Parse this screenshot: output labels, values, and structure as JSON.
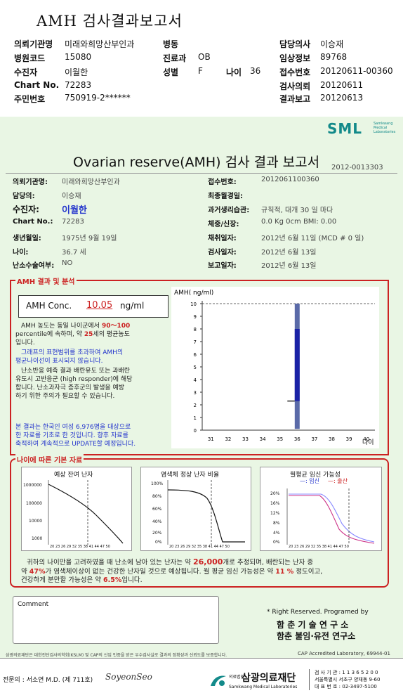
{
  "header": {
    "title": "AMH 검사결과보고서",
    "rows": [
      [
        {
          "k": "의뢰기관명",
          "v": "미래와희망산부인과"
        },
        {
          "k": "병동",
          "v": ""
        },
        {
          "k": "담당의사",
          "v": "이승재"
        }
      ],
      [
        {
          "k": "병원코드",
          "v": "15080"
        },
        {
          "k": "진료과",
          "v": "OB"
        },
        {
          "k": "임상정보",
          "v": "89768"
        }
      ],
      [
        {
          "k": "수진자",
          "v": "이월한"
        },
        {
          "k": "성별",
          "v": "F"
        },
        {
          "k": "접수번호",
          "v": "20120611-00360"
        }
      ],
      [
        {
          "k": "Chart No.",
          "v": "72283"
        },
        {
          "k": "",
          "v": ""
        },
        {
          "k": "검사의뢰",
          "v": "20120611"
        }
      ],
      [
        {
          "k": "주민번호",
          "v": "750919-2******"
        },
        {
          "k": "",
          "v": ""
        },
        {
          "k": "결과보고",
          "v": "20120613"
        }
      ]
    ],
    "age_label": "나이",
    "age_value": "36"
  },
  "report": {
    "logo": "SML",
    "logo_sub": "Samkwang Medical Laboratories",
    "title": "Ovarian reserve(AMH) 검사 결과 보고서",
    "doc_no": "2012-0013303",
    "left": [
      {
        "k": "의뢰기관명:",
        "v": "미래와희망산부인과"
      },
      {
        "k": "담당의:",
        "v": "이승재"
      },
      {
        "k": "수진자:",
        "v": "이월한"
      },
      {
        "k": "Chart No.:",
        "v": "72283"
      },
      {
        "k": "생년월일:",
        "v": "1975년 9월 19일"
      },
      {
        "k": "나이:",
        "v": "36.7 세"
      },
      {
        "k": "난소수술여부:",
        "v": "NO"
      }
    ],
    "right": [
      {
        "k": "접수번호:",
        "v": "2012061100360"
      },
      {
        "k": "최종월경일:",
        "v": ""
      },
      {
        "k": "과거생리습관:",
        "v": "규칙적, 대개   30 일 마다"
      },
      {
        "k": "체중/신장:",
        "v": "0.0 Kg        0cm      BMI:     0.00"
      },
      {
        "k": "채취일자:",
        "v": "2012년 6월 11일   (MCD #  0 일)"
      },
      {
        "k": "검사일자:",
        "v": "2012년 6월 13일"
      },
      {
        "k": "보고일자:",
        "v": "2012년 6월 13일"
      }
    ]
  },
  "amh": {
    "section_title": "AMH 결과 및 분석",
    "conc_label": "AMH Conc.",
    "conc_value": "10.05",
    "conc_unit": "ng/ml",
    "p1": [
      "AMH 농도는 동일 나이군에서",
      "90～100",
      "percentile에 속하며,  약",
      "25",
      "세의 평균농도",
      "입니다."
    ],
    "p2": [
      "그래프의 표현범위를 초과하여 AMH의",
      "평균나이선이 표시되지 않습니다."
    ],
    "p3": [
      "난소반응 예측 결과 배란유도 또는 과배란",
      "유도시 고반응군 (high responder)에 해당",
      "합니다. 난소과자극 증후군의 발생을 예방",
      "하기 위한 주의가 필요할 수 있습니다."
    ],
    "p4": [
      "본 결과는 한국인 여성 6,976명을 대상으로",
      "한 자료를 기초로 한 것입니다. 향후 자료를",
      "축적하여 계속적으로 UPDATE할 예정입니다."
    ]
  },
  "chart_data": {
    "type": "bar",
    "ylabel": "AMH( ng/ml)",
    "xlabel": "나이",
    "ylim": [
      0,
      10
    ],
    "yticks": [
      "0",
      "1",
      "2",
      "3",
      "4",
      "5",
      "6",
      "7",
      "8",
      "9",
      "10"
    ],
    "categories": [
      "31",
      "32",
      "33",
      "34",
      "35",
      "36",
      "37",
      "38",
      "39",
      "40"
    ],
    "bar_category": "36",
    "bar_low": 0.1,
    "bar_high": 10,
    "bar_dark_low": 2.3,
    "bar_dark_high": 8,
    "marker_value": 2.3,
    "reference_line": 10
  },
  "basic": {
    "section_title": "나이에 따른 기본 자료",
    "c1_title": "예상 잔여 난자",
    "c1_yticks": [
      "1000000",
      "100000",
      "10000",
      "1000",
      "100"
    ],
    "c2_title": "염색체 정상 난자 비율",
    "c2_yticks": [
      "100%",
      "80%",
      "60%",
      "40%",
      "20%",
      "0%"
    ],
    "c3_title": "월평균 임신 가능성",
    "c3_legend_a": "—: 임신",
    "c3_legend_b": "—: 출산",
    "c3_yticks": [
      "20%",
      "16%",
      "12%",
      "8%",
      "4%",
      "0%"
    ],
    "xticks": "20 23 26 29 32 35 38 41 44 47 50",
    "s1": [
      "귀하의 나이만을 고려하였을 때 난소에 남아 있는 난자는 약",
      "26,000",
      "개로 추정되며, 배란되는 난자 중"
    ],
    "s2": [
      "약",
      "47%",
      "가 염색체이상이 없는 건강한 난자일 것으로 예상됩니다. 월 평균 임신 가능성은 약",
      "11 %",
      "정도이고,"
    ],
    "s3": [
      "건강하게 분만할 가능성은 약",
      "6.5%",
      "입니다."
    ]
  },
  "comment_label": "Comment",
  "rights": {
    "line1": "* Right Reserved. Programed by",
    "line2": "함 춘 기 술 연 구 소",
    "line3": "함춘 불임·유전 연구소"
  },
  "footer": {
    "note": "삼광의료재단은 대한진단검사의학회(KSLM) 및 CAP의 신임 인증을 받은 우수검사실로 결과의 정확성과 신뢰도를 보증합니다.",
    "cap": "CAP  Accredited  Laboratory,   69944-01",
    "doctor": "전문의 : 서소연 M.D. (제 711호)",
    "signature": "SoyeonSeo",
    "org_small": "의료법인",
    "org": "삼광의료재단",
    "org_sub": "Samkwang Medical Laboratories",
    "addr1": "검 사 기 관 : 1 1 3 6 5 2 0 0",
    "addr2": "서울특별시 서초구 양재동 9-60",
    "addr3": "대 표 번 호 : 02-3497-5100"
  }
}
